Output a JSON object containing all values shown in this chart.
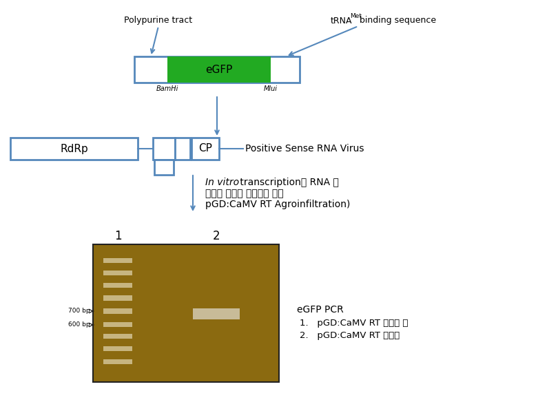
{
  "bg_color": "#ffffff",
  "blue_color": "#5588bb",
  "green_color": "#22aa22",
  "label_polypurine": "Polypurine tract",
  "label_trna": "tRNA",
  "label_trna_sup": "Met",
  "label_trna_rest": " binding sequence",
  "label_egfp": "eGFP",
  "label_bamhi": "BamHi",
  "label_mlui": "Mlui",
  "label_rdrp": "RdRp",
  "label_cp": "CP",
  "label_psrv": "Positive Sense RNA Virus",
  "text_invitro_italic": "In vitro",
  "text_invitro_rest": " transcription（ RNA 로",
  "text_invitro_line2": "담배에 접종후 병징발생 잎에",
  "text_invitro_line3": "pGD:CaMV RT Agroinfiltration)",
  "label_lane1": "1",
  "label_lane2": "2",
  "label_egfp_pcr": "eGFP PCR",
  "label_item1": "pGD:CaMV RT 무처리 잎",
  "label_item2": "pGD:CaMV RT 처리잎",
  "gel_bg": "#8B6A10",
  "marker_band_color": "#d0c090"
}
